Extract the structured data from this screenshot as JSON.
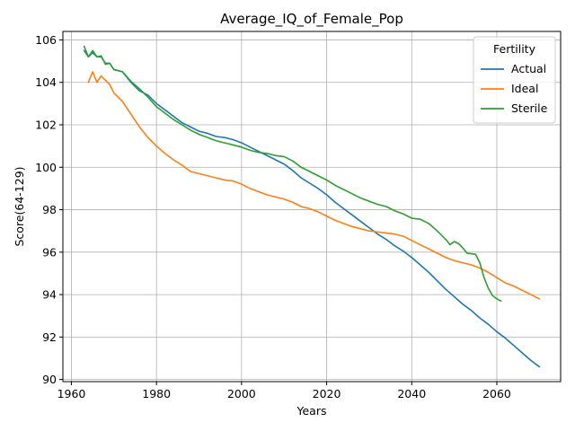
{
  "chart_data": {
    "type": "line",
    "title": "Average_IQ_of_Female_Pop",
    "xlabel": "Years",
    "ylabel": "Score(64-129)",
    "xlim": [
      1958,
      2075
    ],
    "ylim": [
      89.9,
      106.4
    ],
    "xticks": [
      1960,
      1980,
      2000,
      2020,
      2040,
      2060
    ],
    "yticks": [
      90,
      92,
      94,
      96,
      98,
      100,
      102,
      104,
      106
    ],
    "grid": true,
    "legend": {
      "title": "Fertility",
      "placement": "top-right"
    },
    "series": [
      {
        "name": "Actual",
        "color": "#1f77b4",
        "points": [
          [
            1963,
            105.5
          ],
          [
            1964,
            105.2
          ],
          [
            1965,
            105.4
          ],
          [
            1966,
            105.2
          ],
          [
            1967,
            105.2
          ],
          [
            1968,
            104.9
          ],
          [
            1969,
            104.9
          ],
          [
            1970,
            104.6
          ],
          [
            1972,
            104.5
          ],
          [
            1974,
            104.0
          ],
          [
            1976,
            103.6
          ],
          [
            1978,
            103.4
          ],
          [
            1980,
            103.0
          ],
          [
            1982,
            102.7
          ],
          [
            1984,
            102.4
          ],
          [
            1986,
            102.1
          ],
          [
            1988,
            101.9
          ],
          [
            1990,
            101.7
          ],
          [
            1992,
            101.6
          ],
          [
            1994,
            101.45
          ],
          [
            1996,
            101.4
          ],
          [
            1998,
            101.3
          ],
          [
            2000,
            101.15
          ],
          [
            2002,
            100.95
          ],
          [
            2004,
            100.75
          ],
          [
            2006,
            100.55
          ],
          [
            2008,
            100.35
          ],
          [
            2010,
            100.15
          ],
          [
            2012,
            99.85
          ],
          [
            2014,
            99.5
          ],
          [
            2016,
            99.25
          ],
          [
            2018,
            99.0
          ],
          [
            2020,
            98.7
          ],
          [
            2022,
            98.35
          ],
          [
            2024,
            98.05
          ],
          [
            2026,
            97.75
          ],
          [
            2028,
            97.45
          ],
          [
            2030,
            97.15
          ],
          [
            2032,
            96.85
          ],
          [
            2034,
            96.6
          ],
          [
            2036,
            96.3
          ],
          [
            2038,
            96.05
          ],
          [
            2040,
            95.75
          ],
          [
            2042,
            95.4
          ],
          [
            2044,
            95.05
          ],
          [
            2046,
            94.65
          ],
          [
            2048,
            94.25
          ],
          [
            2050,
            93.9
          ],
          [
            2052,
            93.55
          ],
          [
            2054,
            93.25
          ],
          [
            2056,
            92.9
          ],
          [
            2058,
            92.6
          ],
          [
            2060,
            92.25
          ],
          [
            2062,
            91.95
          ],
          [
            2064,
            91.6
          ],
          [
            2066,
            91.25
          ],
          [
            2068,
            90.9
          ],
          [
            2070,
            90.6
          ]
        ]
      },
      {
        "name": "Ideal",
        "color": "#ff7f0e",
        "points": [
          [
            1964,
            104.0
          ],
          [
            1965,
            104.5
          ],
          [
            1966,
            104.0
          ],
          [
            1967,
            104.3
          ],
          [
            1968,
            104.1
          ],
          [
            1969,
            103.9
          ],
          [
            1970,
            103.5
          ],
          [
            1972,
            103.1
          ],
          [
            1974,
            102.5
          ],
          [
            1976,
            101.9
          ],
          [
            1978,
            101.4
          ],
          [
            1980,
            101.0
          ],
          [
            1982,
            100.65
          ],
          [
            1984,
            100.35
          ],
          [
            1986,
            100.1
          ],
          [
            1988,
            99.8
          ],
          [
            1990,
            99.7
          ],
          [
            1992,
            99.6
          ],
          [
            1994,
            99.5
          ],
          [
            1996,
            99.4
          ],
          [
            1998,
            99.35
          ],
          [
            2000,
            99.2
          ],
          [
            2002,
            99.0
          ],
          [
            2004,
            98.85
          ],
          [
            2006,
            98.7
          ],
          [
            2008,
            98.6
          ],
          [
            2010,
            98.5
          ],
          [
            2012,
            98.35
          ],
          [
            2014,
            98.15
          ],
          [
            2016,
            98.05
          ],
          [
            2018,
            97.9
          ],
          [
            2020,
            97.7
          ],
          [
            2022,
            97.5
          ],
          [
            2024,
            97.35
          ],
          [
            2026,
            97.2
          ],
          [
            2028,
            97.1
          ],
          [
            2030,
            97.0
          ],
          [
            2032,
            96.95
          ],
          [
            2034,
            96.9
          ],
          [
            2036,
            96.85
          ],
          [
            2038,
            96.75
          ],
          [
            2040,
            96.55
          ],
          [
            2042,
            96.35
          ],
          [
            2044,
            96.15
          ],
          [
            2046,
            95.95
          ],
          [
            2048,
            95.75
          ],
          [
            2050,
            95.6
          ],
          [
            2052,
            95.5
          ],
          [
            2054,
            95.4
          ],
          [
            2056,
            95.25
          ],
          [
            2058,
            95.05
          ],
          [
            2060,
            94.8
          ],
          [
            2062,
            94.55
          ],
          [
            2064,
            94.4
          ],
          [
            2066,
            94.2
          ],
          [
            2068,
            94.0
          ],
          [
            2070,
            93.8
          ]
        ]
      },
      {
        "name": "Sterile",
        "color": "#2ca02c",
        "points": [
          [
            1963,
            105.7
          ],
          [
            1964,
            105.2
          ],
          [
            1965,
            105.5
          ],
          [
            1966,
            105.2
          ],
          [
            1967,
            105.25
          ],
          [
            1968,
            104.85
          ],
          [
            1969,
            104.9
          ],
          [
            1970,
            104.6
          ],
          [
            1972,
            104.5
          ],
          [
            1974,
            104.05
          ],
          [
            1976,
            103.7
          ],
          [
            1978,
            103.3
          ],
          [
            1980,
            102.85
          ],
          [
            1982,
            102.55
          ],
          [
            1984,
            102.25
          ],
          [
            1986,
            102.0
          ],
          [
            1988,
            101.75
          ],
          [
            1990,
            101.55
          ],
          [
            1992,
            101.4
          ],
          [
            1994,
            101.25
          ],
          [
            1996,
            101.15
          ],
          [
            1998,
            101.05
          ],
          [
            2000,
            100.95
          ],
          [
            2002,
            100.8
          ],
          [
            2004,
            100.7
          ],
          [
            2006,
            100.65
          ],
          [
            2008,
            100.55
          ],
          [
            2010,
            100.5
          ],
          [
            2012,
            100.3
          ],
          [
            2014,
            100.0
          ],
          [
            2016,
            99.8
          ],
          [
            2018,
            99.6
          ],
          [
            2020,
            99.4
          ],
          [
            2022,
            99.15
          ],
          [
            2024,
            98.95
          ],
          [
            2026,
            98.75
          ],
          [
            2028,
            98.55
          ],
          [
            2030,
            98.4
          ],
          [
            2032,
            98.25
          ],
          [
            2034,
            98.15
          ],
          [
            2036,
            97.95
          ],
          [
            2038,
            97.8
          ],
          [
            2040,
            97.6
          ],
          [
            2042,
            97.55
          ],
          [
            2044,
            97.35
          ],
          [
            2046,
            97.0
          ],
          [
            2048,
            96.6
          ],
          [
            2049,
            96.35
          ],
          [
            2050,
            96.5
          ],
          [
            2051,
            96.4
          ],
          [
            2052,
            96.2
          ],
          [
            2053,
            95.95
          ],
          [
            2055,
            95.9
          ],
          [
            2056,
            95.5
          ],
          [
            2057,
            94.8
          ],
          [
            2058,
            94.3
          ],
          [
            2059,
            93.95
          ],
          [
            2060,
            93.8
          ],
          [
            2061,
            93.7
          ]
        ]
      }
    ]
  }
}
